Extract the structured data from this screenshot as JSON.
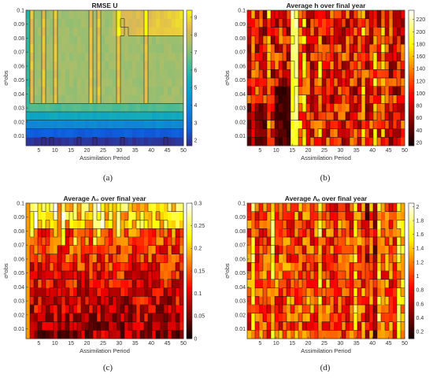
{
  "chart_data": [
    {
      "type": "heatmap",
      "caption": "(a)",
      "title": "RMSE U",
      "xlabel": "Assimilation Period",
      "ylabel": "σ²obs",
      "x_ticks": [
        5,
        10,
        15,
        20,
        25,
        30,
        35,
        40,
        45,
        50
      ],
      "y_ticks": [
        "0.01",
        "0.02",
        "0.03",
        "0.04",
        "0.05",
        "0.06",
        "0.07",
        "0.08",
        "0.09",
        "0.1"
      ],
      "xlim": [
        1,
        50
      ],
      "ylim": [
        0.003,
        0.1
      ],
      "colormap": "parula",
      "colorbar_ticks": [
        2,
        3,
        4,
        5,
        6,
        7,
        8,
        9
      ],
      "colorbar_range": [
        1.7,
        9.4
      ],
      "description_values": {
        "low_x_low_y": 2,
        "mid_region": 7.5,
        "top_right": 9
      }
    },
    {
      "type": "heatmap",
      "caption": "(b)",
      "title": "Average h over final year",
      "xlabel": "Assimilation Period",
      "ylabel": "σ²obs",
      "x_ticks": [
        5,
        10,
        15,
        20,
        25,
        30,
        35,
        40,
        45,
        50
      ],
      "y_ticks": [
        "0.01",
        "0.02",
        "0.03",
        "0.04",
        "0.05",
        "0.06",
        "0.07",
        "0.08",
        "0.09",
        "0.1"
      ],
      "xlim": [
        1,
        50
      ],
      "ylim": [
        0.003,
        0.1
      ],
      "colormap": "hot",
      "colorbar_ticks": [
        20,
        40,
        60,
        80,
        100,
        120,
        140,
        160,
        180,
        200,
        220
      ],
      "colorbar_range": [
        15,
        235
      ]
    },
    {
      "type": "heatmap",
      "caption": "(c)",
      "title": "Average Λ₀ over final year",
      "xlabel": "Assimilation Period",
      "ylabel": "σ²obs",
      "x_ticks": [
        5,
        10,
        15,
        20,
        25,
        30,
        35,
        40,
        45,
        50
      ],
      "y_ticks": [
        "0.01",
        "0.02",
        "0.03",
        "0.04",
        "0.05",
        "0.06",
        "0.07",
        "0.08",
        "0.09",
        "0.1"
      ],
      "xlim": [
        1,
        50
      ],
      "ylim": [
        0.003,
        0.1
      ],
      "colormap": "hot",
      "colorbar_ticks": [
        0,
        0.05,
        0.1,
        0.15,
        0.2,
        0.25,
        0.3
      ],
      "colorbar_range": [
        0,
        0.3
      ]
    },
    {
      "type": "heatmap",
      "caption": "(d)",
      "title": "Average Λₐ over final year",
      "xlabel": "Assimilation Period",
      "ylabel": "σ²obs",
      "x_ticks": [
        5,
        10,
        15,
        20,
        25,
        30,
        35,
        40,
        45,
        50
      ],
      "y_ticks": [
        "0.01",
        "0.02",
        "0.03",
        "0.04",
        "0.05",
        "0.06",
        "0.07",
        "0.08",
        "0.09",
        "0.1"
      ],
      "xlim": [
        1,
        50
      ],
      "ylim": [
        0.003,
        0.1
      ],
      "colormap": "hot",
      "colorbar_ticks": [
        0.2,
        0.4,
        0.6,
        0.8,
        1,
        1.2,
        1.4,
        1.6,
        1.8,
        2
      ],
      "colorbar_range": [
        0.1,
        2.05
      ]
    }
  ]
}
